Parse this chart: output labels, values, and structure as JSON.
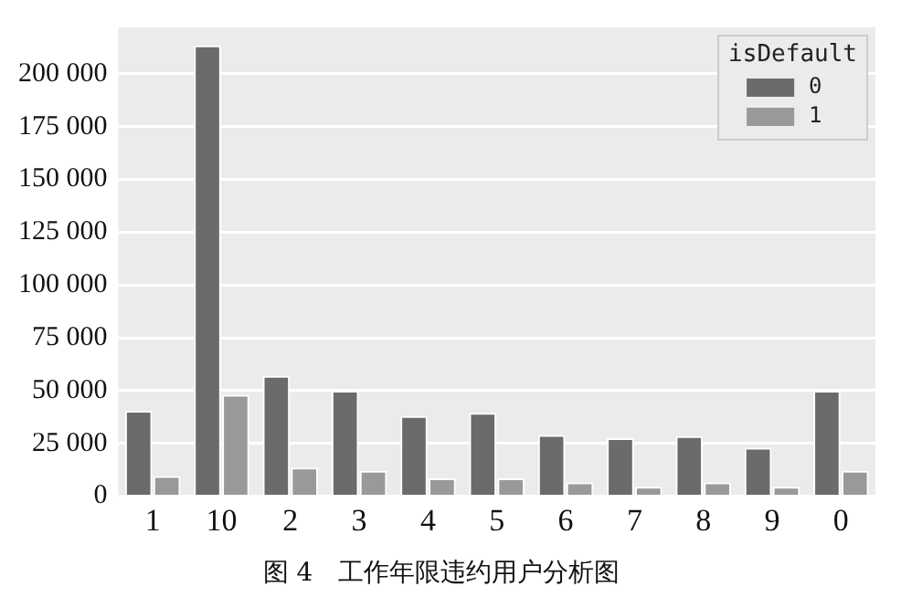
{
  "chart_data": {
    "type": "bar",
    "title": "图 4　工作年限违约用户分析图",
    "legend_title": "isDefault",
    "categories": [
      "1",
      "10",
      "2",
      "3",
      "4",
      "5",
      "6",
      "7",
      "8",
      "9",
      "0"
    ],
    "series": [
      {
        "name": "0",
        "color": "#6b6b6b",
        "values": [
          40500,
          213500,
          57000,
          50000,
          38000,
          39500,
          29000,
          27500,
          28500,
          23000,
          50000
        ]
      },
      {
        "name": "1",
        "color": "#999999",
        "values": [
          9500,
          48000,
          13500,
          12000,
          8500,
          8500,
          6500,
          4500,
          6500,
          4500,
          12000
        ]
      }
    ],
    "ylim": [
      0,
      222000
    ],
    "yticks": [
      0,
      {
        "value": 25000,
        "label": "25 000"
      },
      {
        "value": 50000,
        "label": "50 000"
      },
      {
        "value": 75000,
        "label": "75 000"
      },
      {
        "value": 100000,
        "label": "100 000"
      },
      {
        "value": 125000,
        "label": "125 000"
      },
      {
        "value": 150000,
        "label": "150 000"
      },
      {
        "value": 175000,
        "label": "175 000"
      },
      {
        "value": 200000,
        "label": "200 000"
      }
    ],
    "grid": "y",
    "legend": "top right"
  }
}
